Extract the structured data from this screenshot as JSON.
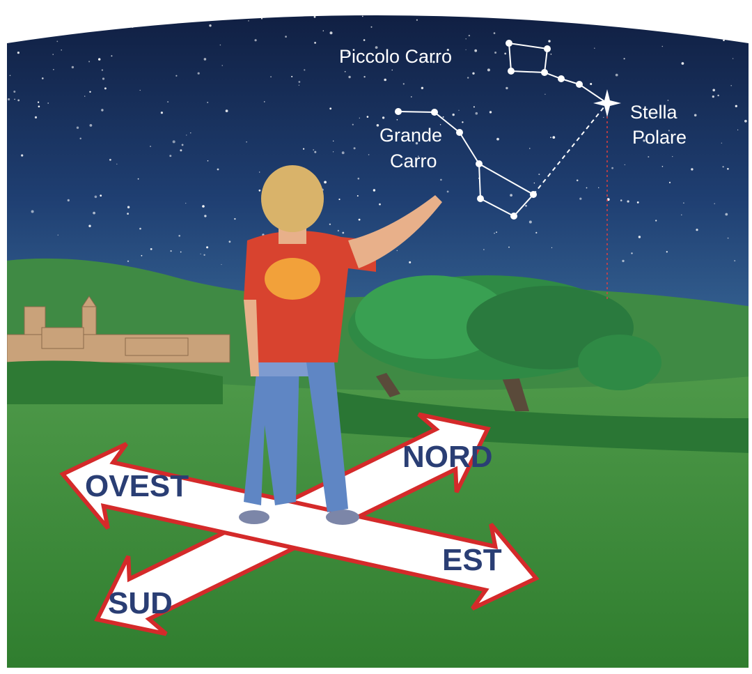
{
  "sky_labels": {
    "piccolo_carro": "Piccolo Carro",
    "grande_carro": [
      "Grande",
      "Carro"
    ],
    "stella_polare": [
      "Stella",
      "Polare"
    ]
  },
  "directions": {
    "nord": "NORD",
    "ovest": "OVEST",
    "est": "EST",
    "sud": "SUD"
  }
}
